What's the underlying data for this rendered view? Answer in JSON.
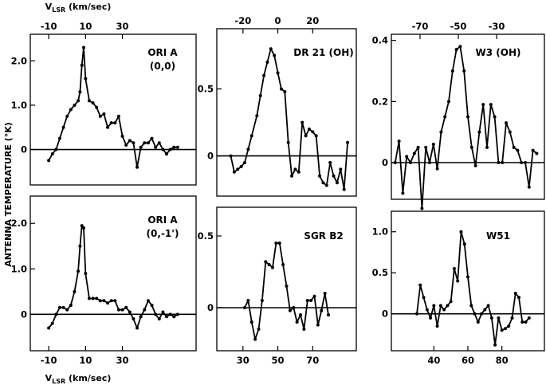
{
  "figure": {
    "top_axis_label": "V",
    "top_axis_label_sub": "LSR",
    "top_axis_label_unit": " (km/sec)",
    "bottom_axis_label": "V",
    "bottom_axis_label_sub": "LSR",
    "bottom_axis_label_unit": " (km/sec)",
    "y_axis_label": "ANTENNA TEMPERATURE (°K)"
  },
  "chart_data": [
    {
      "id": "ori-a-0-0",
      "type": "line",
      "title_lines": [
        "ORI A",
        "(0,0)"
      ],
      "xlim": [
        -20,
        70
      ],
      "ylim": [
        -0.8,
        2.6
      ],
      "x_ticks": [
        -10,
        10,
        30
      ],
      "x_ticks_top": true,
      "y_ticks": [
        0,
        1.0,
        2.0
      ],
      "y_tick_labels": [
        "0",
        "1.0",
        "2.0"
      ],
      "series": [
        {
          "x": [
            -10,
            -8,
            -6,
            -4,
            -2,
            0,
            2,
            4,
            6,
            7,
            8,
            9,
            10,
            12,
            14,
            16,
            18,
            20,
            22,
            24,
            26,
            28,
            30,
            32,
            34,
            36,
            38,
            40,
            42,
            44,
            46,
            48,
            50,
            52,
            54,
            56,
            58,
            60
          ],
          "y": [
            -0.25,
            -0.1,
            0.0,
            0.25,
            0.5,
            0.75,
            0.9,
            1.0,
            1.1,
            1.3,
            1.9,
            2.3,
            1.6,
            1.1,
            1.05,
            0.95,
            0.75,
            0.8,
            0.5,
            0.6,
            0.6,
            0.75,
            0.3,
            0.1,
            0.2,
            0.15,
            -0.4,
            0.05,
            0.15,
            0.15,
            0.25,
            0.05,
            0.15,
            0.0,
            -0.1,
            0.0,
            0.05,
            0.05
          ]
        }
      ]
    },
    {
      "id": "dr21-oh",
      "type": "line",
      "title_lines": [
        "DR 21 (OH)"
      ],
      "xlim": [
        -35,
        45
      ],
      "ylim": [
        -0.3,
        0.95
      ],
      "x_ticks": [
        -20,
        0,
        20
      ],
      "x_ticks_top": true,
      "y_ticks": [
        0,
        0.5
      ],
      "y_tick_labels": [
        "0",
        "0.5"
      ],
      "series": [
        {
          "x": [
            -27,
            -25,
            -23,
            -21,
            -19,
            -17,
            -15,
            -12,
            -10,
            -8,
            -6,
            -4,
            -2,
            0,
            2,
            4,
            6,
            8,
            10,
            12,
            14,
            16,
            18,
            20,
            22,
            24,
            26,
            28,
            30,
            32,
            34,
            36,
            38,
            40
          ],
          "y": [
            0.0,
            -0.12,
            -0.1,
            -0.08,
            -0.05,
            0.05,
            0.15,
            0.3,
            0.45,
            0.6,
            0.7,
            0.8,
            0.75,
            0.62,
            0.5,
            0.48,
            0.1,
            -0.15,
            -0.1,
            -0.12,
            0.25,
            0.15,
            0.2,
            0.18,
            0.15,
            -0.15,
            -0.2,
            -0.22,
            -0.05,
            -0.15,
            -0.2,
            -0.1,
            -0.25,
            0.1
          ]
        }
      ]
    },
    {
      "id": "w3-oh",
      "type": "line",
      "title_lines": [
        "W3 (OH)"
      ],
      "xlim": [
        -85,
        -5
      ],
      "ylim": [
        -0.12,
        0.42
      ],
      "x_ticks": [
        -70,
        -50,
        -30
      ],
      "x_ticks_top": true,
      "y_ticks": [
        0,
        0.2,
        0.4
      ],
      "y_tick_labels": [
        "0",
        "0.2",
        "0.4"
      ],
      "series": [
        {
          "x": [
            -83,
            -81,
            -79,
            -77,
            -75,
            -73,
            -71,
            -69,
            -67,
            -65,
            -63,
            -61,
            -59,
            -57,
            -55,
            -53,
            -51,
            -49,
            -47,
            -45,
            -43,
            -41,
            -39,
            -37,
            -35,
            -33,
            -31,
            -29,
            -27,
            -25,
            -23,
            -21,
            -19,
            -17,
            -15,
            -13,
            -11,
            -9
          ],
          "y": [
            0.0,
            0.07,
            -0.1,
            0.02,
            0.0,
            0.03,
            0.05,
            -0.15,
            0.05,
            0.0,
            0.06,
            -0.02,
            0.1,
            0.15,
            0.2,
            0.3,
            0.37,
            0.38,
            0.3,
            0.15,
            0.05,
            -0.01,
            0.1,
            0.19,
            0.05,
            0.19,
            0.15,
            0.0,
            0.0,
            0.13,
            0.1,
            0.05,
            0.04,
            0.0,
            0.0,
            -0.08,
            0.04,
            0.03
          ]
        }
      ]
    },
    {
      "id": "ori-a-0-1",
      "type": "line",
      "title_lines": [
        "ORI A",
        "(0,-1')"
      ],
      "xlim": [
        -20,
        70
      ],
      "ylim": [
        -0.8,
        2.6
      ],
      "x_ticks": [
        -10,
        10,
        30
      ],
      "x_ticks_top": false,
      "y_ticks": [
        0,
        1.0,
        2.0
      ],
      "y_tick_labels": [
        "0",
        "1.0",
        "2.0"
      ],
      "series": [
        {
          "x": [
            -10,
            -8,
            -6,
            -4,
            -2,
            0,
            2,
            4,
            6,
            7,
            8,
            9,
            10,
            12,
            14,
            16,
            18,
            20,
            22,
            24,
            26,
            28,
            30,
            32,
            34,
            36,
            38,
            40,
            42,
            44,
            46,
            48,
            50,
            52,
            54,
            56,
            58,
            60
          ],
          "y": [
            -0.3,
            -0.2,
            0.0,
            0.15,
            0.15,
            0.1,
            0.2,
            0.5,
            0.95,
            1.5,
            1.95,
            1.9,
            0.9,
            0.35,
            0.35,
            0.35,
            0.3,
            0.3,
            0.25,
            0.3,
            0.3,
            0.1,
            0.1,
            0.15,
            0.05,
            -0.1,
            -0.3,
            -0.05,
            0.1,
            0.3,
            0.2,
            0.0,
            -0.1,
            0.05,
            -0.05,
            0.0,
            -0.05,
            0.0
          ]
        }
      ]
    },
    {
      "id": "sgr-b2",
      "type": "line",
      "title_lines": [
        "SGR B2"
      ],
      "xlim": [
        15,
        95
      ],
      "ylim": [
        -0.3,
        0.7
      ],
      "x_ticks": [
        30,
        50,
        70
      ],
      "x_ticks_top": false,
      "y_ticks": [
        0,
        0.5
      ],
      "y_tick_labels": [
        "0",
        "0.5"
      ],
      "series": [
        {
          "x": [
            31,
            33,
            35,
            37,
            39,
            41,
            43,
            45,
            47,
            49,
            51,
            53,
            55,
            57,
            59,
            61,
            63,
            65,
            67,
            69,
            71,
            73,
            75,
            77,
            79
          ],
          "y": [
            0.0,
            0.05,
            -0.1,
            -0.22,
            -0.15,
            0.05,
            0.32,
            0.3,
            0.28,
            0.45,
            0.45,
            0.3,
            0.15,
            -0.02,
            0.0,
            -0.1,
            -0.05,
            -0.15,
            0.05,
            0.05,
            0.08,
            -0.12,
            -0.02,
            0.1,
            -0.05
          ]
        }
      ]
    },
    {
      "id": "w51",
      "type": "line",
      "title_lines": [
        "W51"
      ],
      "xlim": [
        15,
        105
      ],
      "ylim": [
        -0.45,
        1.25
      ],
      "x_ticks": [
        40,
        60,
        80
      ],
      "x_ticks_top": false,
      "y_ticks": [
        0,
        0.5,
        1.0
      ],
      "y_tick_labels": [
        "0",
        "0.5",
        "1.0"
      ],
      "series": [
        {
          "x": [
            30,
            32,
            34,
            36,
            38,
            40,
            42,
            44,
            46,
            48,
            50,
            52,
            54,
            56,
            58,
            60,
            62,
            64,
            66,
            68,
            70,
            72,
            74,
            76,
            78,
            80,
            82,
            84,
            86,
            88,
            90,
            92,
            94,
            96
          ],
          "y": [
            0.0,
            0.35,
            0.2,
            0.05,
            -0.05,
            0.1,
            -0.15,
            0.1,
            0.05,
            0.1,
            0.15,
            0.55,
            0.4,
            1.0,
            0.85,
            0.45,
            0.1,
            0.0,
            -0.1,
            0.0,
            0.05,
            0.1,
            -0.05,
            -0.38,
            -0.05,
            -0.2,
            -0.18,
            -0.15,
            -0.05,
            0.25,
            0.2,
            -0.1,
            -0.1,
            -0.05
          ]
        }
      ]
    }
  ]
}
